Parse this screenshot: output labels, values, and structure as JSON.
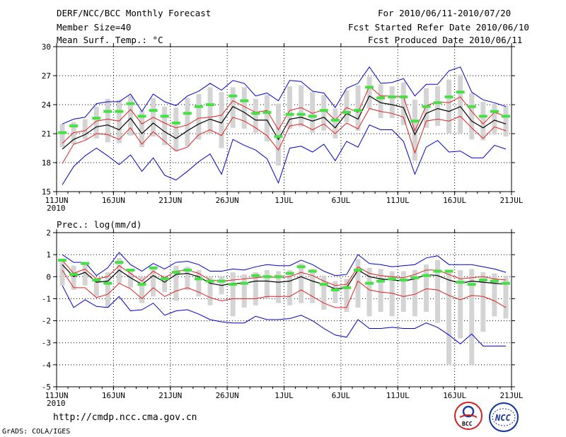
{
  "header": {
    "title": "DERF/NCC/BCC Monthly Forecast",
    "member_size": "Member Size=40",
    "variable1": "Mean Surf. Temp.: °C",
    "period": "For 2010/06/11-2010/07/20",
    "fcst_started": "Fcst Started Refer Date 2010/06/10",
    "fcst_produced": "Fcst Produced Date 2010/06/11"
  },
  "footer": {
    "url": "http://cmdp.ncc.cma.gov.cn",
    "grads": "GrADS: COLA/IGES",
    "logo_bcc": "BCC",
    "logo_ncc": "NCC"
  },
  "colors": {
    "box": "#d4d4d4",
    "mean": "#000000",
    "q": "#e0201f",
    "ext": "#0000d0",
    "obs": "#44e044",
    "grid": "#000000"
  },
  "chart_data": [
    {
      "type": "line",
      "title": "Mean Surf. Temp.: °C",
      "xlabel": "",
      "ylabel": "",
      "days": 40,
      "x_ticks": [
        "11JUN",
        "16JUN",
        "21JUN",
        "26JUN",
        "1JUL",
        "6JUL",
        "11JUL",
        "16JUL",
        "21JUL"
      ],
      "x_tick_days": [
        1,
        6,
        11,
        16,
        21,
        26,
        31,
        36,
        41
      ],
      "year_label": "2010",
      "ylim": [
        15,
        30
      ],
      "y_ticks": [
        15,
        18,
        21,
        24,
        27,
        30
      ],
      "series": [
        {
          "name": "ensemble mean",
          "values": [
            19.4,
            20.4,
            20.9,
            21.7,
            21.9,
            21.4,
            22.6,
            21.0,
            22.1,
            21.2,
            20.5,
            21.3,
            22.0,
            22.5,
            22.1,
            23.8,
            23.2,
            22.4,
            22.4,
            20.4,
            22.5,
            22.7,
            22.3,
            22.7,
            21.6,
            23.1,
            22.5,
            24.9,
            24.2,
            24.0,
            23.7,
            20.9,
            23.1,
            23.6,
            23.3,
            23.8,
            22.3,
            21.6,
            22.4,
            22.0
          ]
        },
        {
          "name": "upper quartile",
          "values": [
            20.0,
            21.1,
            21.3,
            22.3,
            22.5,
            22.3,
            23.5,
            22.0,
            22.7,
            22.1,
            21.6,
            21.9,
            22.6,
            22.7,
            22.9,
            24.4,
            23.8,
            23.2,
            23.4,
            21.4,
            23.4,
            23.7,
            23.1,
            23.5,
            22.4,
            23.7,
            23.2,
            25.9,
            24.9,
            24.9,
            24.8,
            21.3,
            23.9,
            24.3,
            24.2,
            24.8,
            23.3,
            22.0,
            23.2,
            22.8
          ]
        },
        {
          "name": "lower quartile",
          "values": [
            17.9,
            19.9,
            20.3,
            21.0,
            20.9,
            20.4,
            21.6,
            19.9,
            21.2,
            20.2,
            19.2,
            19.6,
            20.9,
            21.4,
            20.8,
            22.7,
            22.3,
            21.6,
            20.8,
            19.3,
            21.8,
            22.0,
            21.4,
            22.0,
            21.0,
            22.1,
            21.5,
            23.6,
            23.3,
            23.1,
            22.7,
            19.0,
            22.3,
            22.5,
            22.3,
            22.8,
            21.6,
            20.5,
            21.7,
            21.3
          ]
        },
        {
          "name": "member max",
          "values": [
            22.0,
            22.5,
            22.7,
            24.1,
            24.3,
            24.3,
            25.1,
            23.3,
            25.1,
            24.3,
            23.9,
            24.9,
            25.4,
            26.2,
            25.5,
            26.5,
            26.2,
            24.9,
            25.2,
            24.4,
            26.5,
            26.4,
            25.4,
            25.2,
            23.7,
            25.7,
            26.2,
            27.9,
            26.2,
            26.3,
            26.7,
            24.9,
            26.1,
            26.1,
            27.5,
            27.9,
            25.3,
            24.5,
            24.2,
            23.8
          ]
        },
        {
          "name": "member min",
          "values": [
            15.7,
            17.6,
            18.7,
            19.5,
            18.7,
            17.8,
            18.8,
            17.1,
            18.5,
            16.7,
            16.2,
            17.1,
            18.1,
            18.9,
            16.8,
            20.4,
            19.8,
            19.3,
            18.4,
            15.9,
            19.5,
            19.7,
            19.1,
            19.9,
            18.2,
            20.2,
            19.6,
            21.9,
            21.4,
            21.4,
            20.2,
            16.8,
            19.6,
            20.3,
            19.1,
            19.2,
            18.5,
            18.5,
            19.8,
            19.4
          ]
        },
        {
          "name": "box top",
          "values": [
            22.0,
            22.2,
            22.5,
            23.8,
            24.6,
            24.5,
            24.9,
            23.4,
            24.7,
            23.8,
            23.7,
            24.7,
            25.1,
            25.8,
            25.3,
            25.8,
            25.8,
            24.6,
            25.0,
            24.1,
            25.9,
            26.0,
            25.3,
            25.0,
            23.6,
            25.5,
            26.0,
            26.9,
            26.1,
            25.9,
            26.3,
            24.5,
            25.7,
            25.9,
            26.6,
            27.1,
            25.2,
            24.3,
            24.1,
            23.9
          ]
        },
        {
          "name": "box bottom",
          "values": [
            19.6,
            19.9,
            20.4,
            20.5,
            20.1,
            20.0,
            20.8,
            19.6,
            20.7,
            19.8,
            19.2,
            19.7,
            20.4,
            21.0,
            19.5,
            21.6,
            21.5,
            21.1,
            20.2,
            17.7,
            21.5,
            21.7,
            21.1,
            21.3,
            20.5,
            22.2,
            21.3,
            23.6,
            22.6,
            22.6,
            21.9,
            18.2,
            21.6,
            21.8,
            21.0,
            21.0,
            20.4,
            20.3,
            20.9,
            20.7
          ]
        },
        {
          "name": "observation",
          "values": [
            21.1,
            21.8,
            null,
            22.6,
            23.3,
            23.3,
            24.1,
            22.8,
            23.4,
            22.8,
            22.1,
            23.1,
            23.8,
            24.0,
            null,
            24.9,
            24.4,
            23.1,
            23.2,
            20.7,
            23.0,
            23.0,
            22.8,
            23.4,
            22.4,
            23.2,
            23.4,
            25.8,
            24.7,
            24.8,
            24.8,
            22.3,
            23.8,
            24.2,
            24.8,
            25.3,
            23.8,
            22.8,
            23.3,
            22.8
          ]
        }
      ]
    },
    {
      "type": "line",
      "title": "Prec.: log(mm/d)",
      "xlabel": "",
      "ylabel": "",
      "days": 40,
      "x_ticks": [
        "11JUN",
        "16JUN",
        "21JUN",
        "26JUN",
        "1JUL",
        "6JUL",
        "11JUL",
        "16JUL",
        "21JUL"
      ],
      "x_tick_days": [
        1,
        6,
        11,
        16,
        21,
        26,
        31,
        36,
        41
      ],
      "year_label": "2010",
      "ylim": [
        -5,
        2
      ],
      "y_ticks": [
        -5,
        -4,
        -3,
        -2,
        -1,
        0,
        1,
        2
      ],
      "series": [
        {
          "name": "ensemble mean",
          "values": [
            0.55,
            0.0,
            0.2,
            -0.25,
            -0.2,
            0.3,
            -0.05,
            -0.35,
            0.05,
            -0.25,
            0.1,
            0.15,
            0.0,
            -0.3,
            -0.4,
            -0.3,
            -0.3,
            -0.2,
            -0.2,
            -0.25,
            -0.2,
            0.0,
            -0.2,
            -0.35,
            -0.55,
            -0.5,
            0.3,
            0.0,
            -0.1,
            -0.15,
            -0.2,
            -0.1,
            0.1,
            0.05,
            -0.15,
            -0.3,
            -0.2,
            -0.25,
            -0.3,
            -0.35
          ]
        },
        {
          "name": "upper quartile",
          "values": [
            0.75,
            0.15,
            0.35,
            -0.1,
            0.0,
            0.5,
            0.15,
            -0.2,
            0.25,
            -0.05,
            0.25,
            0.3,
            0.15,
            -0.15,
            -0.2,
            -0.15,
            -0.1,
            -0.05,
            0.0,
            -0.05,
            0.0,
            0.2,
            0.05,
            -0.2,
            -0.4,
            -0.35,
            0.45,
            0.15,
            0.05,
            0.0,
            -0.05,
            0.1,
            0.3,
            0.3,
            0.1,
            -0.1,
            -0.05,
            0.0,
            -0.1,
            -0.15
          ]
        },
        {
          "name": "lower quartile",
          "values": [
            0.3,
            -0.5,
            -0.5,
            -0.95,
            -0.8,
            -0.3,
            -0.55,
            -1.0,
            -0.5,
            -0.9,
            -0.65,
            -0.5,
            -0.7,
            -0.95,
            -1.1,
            -1.0,
            -1.0,
            -1.0,
            -0.9,
            -0.9,
            -0.9,
            -0.6,
            -0.9,
            -1.2,
            -1.4,
            -1.4,
            -0.2,
            -0.6,
            -0.7,
            -0.75,
            -0.9,
            -0.8,
            -0.55,
            -0.6,
            -0.85,
            -1.05,
            -0.85,
            -0.9,
            -1.1,
            -1.4
          ]
        },
        {
          "name": "member max",
          "values": [
            1.0,
            0.65,
            0.65,
            0.05,
            0.4,
            1.1,
            0.55,
            0.25,
            0.6,
            0.35,
            0.65,
            0.7,
            0.55,
            0.25,
            0.25,
            0.35,
            0.3,
            0.45,
            0.55,
            0.5,
            0.5,
            0.75,
            0.55,
            0.25,
            0.05,
            0.1,
            1.0,
            0.6,
            0.55,
            0.45,
            0.5,
            0.55,
            0.85,
            0.95,
            0.55,
            0.55,
            0.55,
            0.45,
            0.35,
            0.2
          ]
        },
        {
          "name": "member min",
          "values": [
            -0.4,
            -1.4,
            -1.05,
            -1.35,
            -1.4,
            -0.9,
            -1.55,
            -1.5,
            -1.2,
            -1.75,
            -1.55,
            -1.5,
            -1.7,
            -1.95,
            -2.05,
            -2.1,
            -2.1,
            -1.8,
            -1.95,
            -1.95,
            -1.9,
            -1.75,
            -2.0,
            -2.35,
            -2.65,
            -2.75,
            -1.95,
            -2.35,
            -2.35,
            -2.3,
            -2.35,
            -2.35,
            -2.1,
            -2.3,
            -2.65,
            -3.05,
            -2.6,
            -3.15,
            -3.15,
            -3.15
          ]
        },
        {
          "name": "box top",
          "values": [
            0.75,
            0.5,
            0.6,
            -0.1,
            0.2,
            0.85,
            0.3,
            0.0,
            0.35,
            0.05,
            0.5,
            0.45,
            0.3,
            0.0,
            0.0,
            0.2,
            0.1,
            0.2,
            0.3,
            0.25,
            0.3,
            0.6,
            0.35,
            0.05,
            -0.2,
            -0.1,
            0.8,
            0.4,
            0.35,
            0.25,
            0.25,
            0.3,
            0.55,
            0.75,
            0.3,
            0.3,
            0.35,
            0.2,
            0.15,
            0.05
          ]
        },
        {
          "name": "box bottom",
          "values": [
            -0.4,
            -0.6,
            -0.4,
            -0.9,
            -1.4,
            -0.3,
            -0.5,
            -1.2,
            -0.9,
            -0.7,
            -1.1,
            -0.6,
            -0.9,
            -1.3,
            -0.8,
            -1.8,
            -1.4,
            -1.3,
            -1.0,
            -1.2,
            -1.3,
            -1.2,
            -1.2,
            -1.5,
            -1.2,
            -1.6,
            -1.4,
            -1.8,
            -1.6,
            -1.8,
            -1.6,
            -1.8,
            -1.6,
            -2.1,
            -4.0,
            -2.8,
            -4.0,
            -2.5,
            -1.8,
            -1.9
          ]
        },
        {
          "name": "observation",
          "values": [
            0.75,
            0.1,
            0.6,
            -0.15,
            -0.3,
            0.65,
            0.3,
            -0.35,
            0.4,
            -0.1,
            0.2,
            0.3,
            -0.1,
            -0.2,
            -0.2,
            -0.35,
            -0.3,
            0.05,
            0.0,
            0.0,
            0.15,
            0.45,
            0.25,
            -0.35,
            -0.6,
            -0.5,
            0.3,
            -0.3,
            -0.2,
            -0.1,
            -0.15,
            -0.05,
            0.05,
            0.25,
            0.25,
            -0.25,
            -0.35,
            -0.15,
            -0.2,
            -0.3
          ]
        }
      ]
    }
  ]
}
